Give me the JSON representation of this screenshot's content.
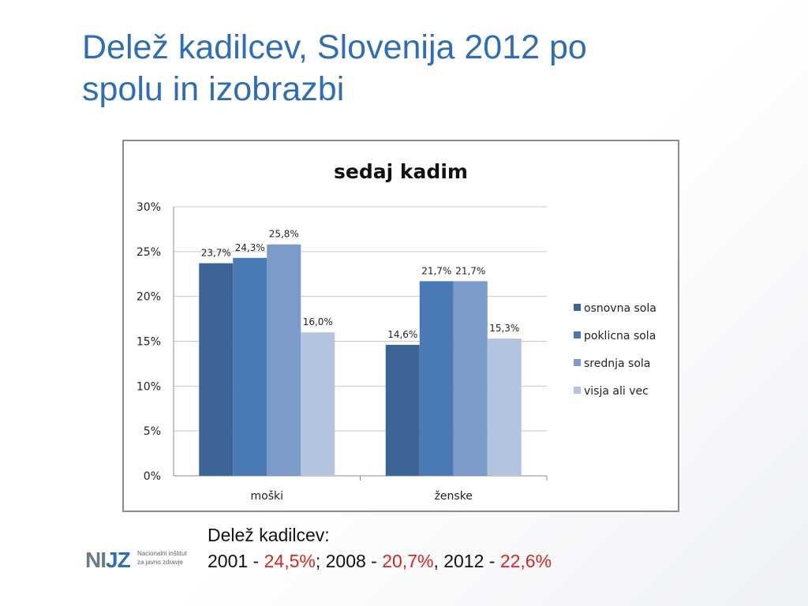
{
  "slide": {
    "title_line1": "Delež kadilcev, Slovenija 2012 po",
    "title_line2": "spolu in izobrazbi",
    "stats_line1": "Delež kadilcev:",
    "stats_p1": "2001 -  ",
    "stats_v1": "24,5%",
    "stats_p2": "; 2008 -  ",
    "stats_v2": "20,7%",
    "stats_p3": ", 2012 - ",
    "stats_v3": "22,6%",
    "accent_color": "#2f6eb7",
    "highlight_color": "#d9261c"
  },
  "logo": {
    "mark_a": "NI",
    "mark_b": "JZ",
    "sub_line1": "Nacionalni inštitut",
    "sub_line2": "za javno zdravje"
  },
  "chart_data": {
    "type": "bar",
    "title": "sedaj kadim",
    "categories": [
      "moški",
      "ženske"
    ],
    "series": [
      {
        "name": "osnovna sola",
        "values": [
          23.7,
          14.6
        ],
        "labels": [
          "23,7%",
          "14,6%"
        ],
        "color": "#3c6496"
      },
      {
        "name": "poklicna sola",
        "values": [
          24.3,
          21.7
        ],
        "labels": [
          "24,3%",
          "21,7%"
        ],
        "color": "#4a7ab5"
      },
      {
        "name": "srednja sola",
        "values": [
          25.8,
          21.7
        ],
        "labels": [
          "25,8%",
          "21,7%"
        ],
        "color": "#7b9bc8"
      },
      {
        "name": "visja ali vec",
        "values": [
          16.0,
          15.3
        ],
        "labels": [
          "16,0%",
          "15,3%"
        ],
        "color": "#b4c4df"
      }
    ],
    "y_ticks": [
      "0%",
      "5%",
      "10%",
      "15%",
      "20%",
      "25%",
      "30%"
    ],
    "ylim": [
      0,
      30
    ],
    "grid": true,
    "legend": "right"
  }
}
